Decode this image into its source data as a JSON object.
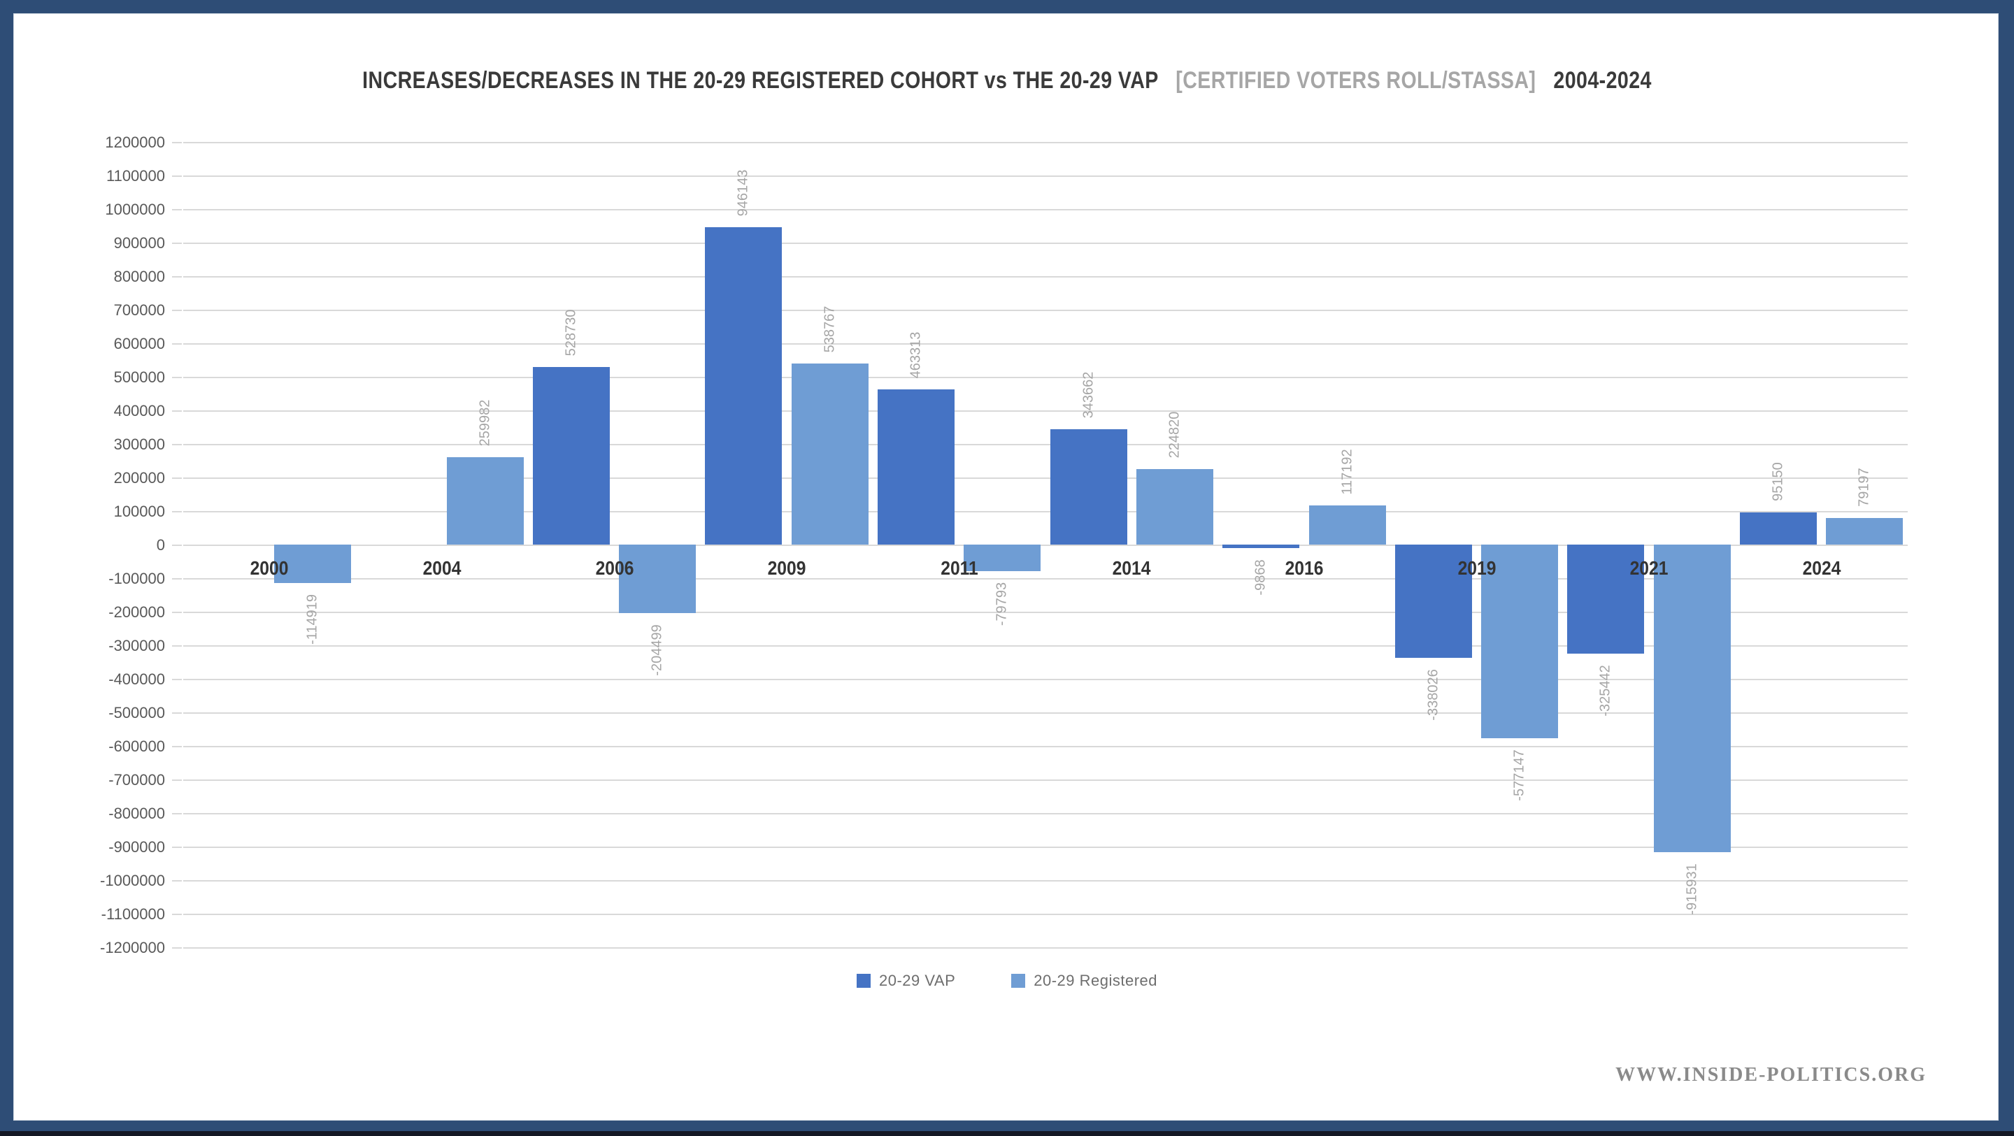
{
  "title": {
    "part1": "INCREASES/DECREASES IN THE 20-29 REGISTERED COHORT vs THE 20-29 VAP",
    "part2": "[CERTIFIED VOTERS ROLL/STASSA]",
    "part3": "2004-2024"
  },
  "footer": {
    "website": "WWW.INSIDE-POLITICS.ORG"
  },
  "colors": {
    "frame_navy": "#2E4D76",
    "frame_bottom_dark": "#141824",
    "series_vap": "#4573C4",
    "series_registered": "#6F9DD4",
    "gridline": "#D9D9D9",
    "axis_text": "#595959",
    "value_label_text": "#A6A6A6",
    "year_label_text": "#333333",
    "title_main": "#3A3A3A",
    "title_muted": "#A6A6A6",
    "legend_text": "#6E6E6E",
    "footer_text": "#8A8A8A"
  },
  "chart_data": {
    "type": "bar",
    "title": "INCREASES/DECREASES IN THE 20-29 REGISTERED COHORT vs THE 20-29 VAP [CERTIFIED VOTERS ROLL/STASSA] 2004-2024",
    "categories": [
      "2000",
      "2004",
      "2006",
      "2009",
      "2011",
      "2014",
      "2016",
      "2019",
      "2021",
      "2024"
    ],
    "series": [
      {
        "name": "20-29 VAP",
        "color": "#4573C4",
        "values": [
          null,
          null,
          528730,
          946143,
          463313,
          343662,
          -9868,
          -338026,
          -325442,
          95150
        ]
      },
      {
        "name": "20-29 Registered",
        "color": "#6F9DD4",
        "values": [
          -114919,
          259982,
          -204499,
          538767,
          -79793,
          224820,
          117192,
          -577147,
          -915931,
          79197
        ]
      }
    ],
    "ylim": [
      -1200000,
      1200000
    ],
    "ytick_step": 100000,
    "yticks": [
      1200000,
      1100000,
      1000000,
      900000,
      800000,
      700000,
      600000,
      500000,
      400000,
      300000,
      200000,
      100000,
      0,
      -100000,
      -200000,
      -300000,
      -400000,
      -500000,
      -600000,
      -700000,
      -800000,
      -900000,
      -1000000,
      -1100000,
      -1200000
    ],
    "grid": true,
    "legend_position": "bottom",
    "value_label_rotation": -90
  }
}
